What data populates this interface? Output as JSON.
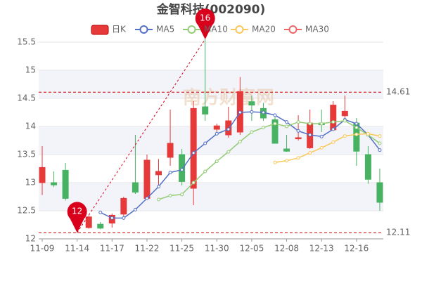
{
  "chart_data": {
    "type": "candlestick",
    "title": "金智科技(002090)",
    "watermark": "南方财富网",
    "categories": [
      "11-09",
      null,
      null,
      "11-14",
      null,
      null,
      "11-17",
      null,
      null,
      "11-22",
      null,
      null,
      "11-25",
      null,
      null,
      "11-30",
      null,
      null,
      "12-05",
      null,
      null,
      "12-08",
      null,
      null,
      "12-13",
      null,
      null,
      "12-16",
      null,
      null
    ],
    "candles": {
      "name": "日K",
      "up_color": "#e63a3a",
      "down_color": "#47b262",
      "open": [
        13.0,
        13.0,
        13.22,
        12.62,
        12.2,
        12.26,
        12.28,
        12.44,
        13.0,
        12.72,
        13.14,
        13.45,
        13.5,
        12.9,
        14.35,
        13.95,
        13.85,
        13.9,
        14.44,
        14.32,
        14.12,
        13.6,
        13.78,
        13.62,
        14.06,
        13.94,
        14.19,
        14.06,
        13.5,
        13.0
      ],
      "close": [
        13.27,
        12.96,
        12.72,
        12.55,
        12.39,
        12.19,
        12.42,
        12.72,
        12.83,
        13.4,
        13.2,
        13.7,
        13.02,
        14.32,
        14.22,
        14.01,
        14.1,
        14.62,
        14.38,
        14.15,
        13.7,
        13.56,
        13.8,
        14.06,
        14.03,
        14.38,
        14.27,
        13.56,
        13.06,
        12.65
      ],
      "high": [
        13.65,
        13.2,
        13.35,
        12.65,
        12.42,
        12.3,
        12.45,
        12.75,
        13.85,
        13.5,
        13.42,
        14.3,
        13.6,
        14.45,
        15.55,
        14.05,
        14.35,
        14.88,
        14.55,
        14.42,
        14.2,
        13.85,
        14.2,
        14.3,
        14.3,
        14.45,
        14.55,
        14.15,
        13.65,
        13.25
      ],
      "low": [
        12.78,
        12.92,
        12.68,
        12.11,
        12.18,
        12.17,
        12.2,
        12.38,
        12.8,
        12.7,
        12.95,
        13.3,
        12.95,
        12.6,
        14.1,
        13.85,
        13.8,
        13.85,
        14.1,
        14.1,
        13.7,
        13.55,
        13.75,
        13.6,
        13.9,
        13.92,
        14.1,
        13.3,
        12.98,
        12.5
      ]
    },
    "series": [
      {
        "name": "MA5",
        "color": "#5470c6",
        "values": [
          null,
          null,
          null,
          null,
          null,
          12.47,
          12.37,
          12.37,
          12.52,
          12.72,
          12.93,
          13.18,
          13.23,
          13.53,
          13.7,
          13.87,
          13.95,
          14.25,
          14.26,
          14.25,
          14.2,
          14.08,
          13.92,
          13.85,
          13.82,
          13.95,
          14.12,
          14.05,
          13.85,
          13.58
        ]
      },
      {
        "name": "MA10",
        "color": "#91cc75",
        "values": [
          null,
          null,
          null,
          null,
          null,
          null,
          null,
          null,
          null,
          null,
          12.7,
          12.77,
          12.79,
          13.0,
          13.2,
          13.38,
          13.55,
          13.73,
          13.9,
          13.98,
          14.05,
          14.0,
          14.08,
          14.05,
          14.05,
          14.08,
          14.1,
          13.98,
          13.85,
          13.7
        ]
      },
      {
        "name": "MA20",
        "color": "#fac858",
        "values": [
          null,
          null,
          null,
          null,
          null,
          null,
          null,
          null,
          null,
          null,
          null,
          null,
          null,
          null,
          null,
          null,
          null,
          null,
          null,
          null,
          13.36,
          13.39,
          13.44,
          13.53,
          13.62,
          13.72,
          13.83,
          13.86,
          13.87,
          13.83
        ]
      },
      {
        "name": "MA30",
        "color": "#ee6666",
        "values": [
          null,
          null,
          null,
          null,
          null,
          null,
          null,
          null,
          null,
          null,
          null,
          null,
          null,
          null,
          null,
          null,
          null,
          null,
          null,
          null,
          null,
          null,
          null,
          null,
          null,
          null,
          null,
          null,
          null,
          null
        ]
      }
    ],
    "hlines": [
      14.61,
      12.11
    ],
    "hline_color": "#cc0000",
    "min_label": "12",
    "max_label": "16",
    "pin_color": "#d9001b",
    "ylim": [
      12,
      15.75
    ],
    "yticks": [
      12,
      12.5,
      13,
      13.5,
      14,
      14.5,
      15,
      15.5
    ],
    "bands": true
  }
}
